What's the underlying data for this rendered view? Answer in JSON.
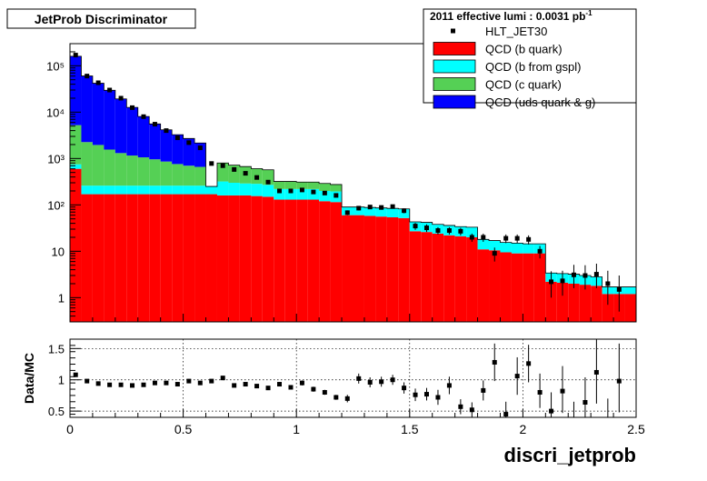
{
  "chart_data": [
    {
      "type": "stacked-histogram",
      "title": "JetProb Discriminator",
      "ylabel": "",
      "xlim": [
        0,
        2.5
      ],
      "ylim": [
        0.3,
        300000
      ],
      "y_scale": "log",
      "y_tick_labels": [
        "1",
        "10",
        "10²",
        "10³",
        "10⁴",
        "10⁵"
      ],
      "bin_edges": [
        0,
        0.05,
        0.1,
        0.15,
        0.2,
        0.25,
        0.3,
        0.35,
        0.4,
        0.45,
        0.5,
        0.55,
        0.6,
        0.65,
        0.7,
        0.75,
        0.8,
        0.85,
        0.9,
        0.95,
        1.0,
        1.05,
        1.1,
        1.15,
        1.2,
        1.25,
        1.3,
        1.35,
        1.4,
        1.45,
        1.5,
        1.55,
        1.6,
        1.65,
        1.7,
        1.75,
        1.8,
        1.85,
        1.9,
        1.95,
        2.0,
        2.05,
        2.1,
        2.15,
        2.2,
        2.25,
        2.3,
        2.35,
        2.4,
        2.45,
        2.5
      ],
      "grid": false,
      "legend_position": "top-right",
      "legend": {
        "header": "2011 effective lumi : 0.0031  pb",
        "header_superscript": "-1",
        "entries": [
          {
            "label": "HLT_JET30",
            "style": "marker",
            "color": "#000000"
          },
          {
            "label": "QCD (b quark)",
            "style": "fill",
            "color": "#ff0000"
          },
          {
            "label": "QCD (b from gspl)",
            "style": "fill",
            "color": "#00ffff"
          },
          {
            "label": "QCD (c quark)",
            "style": "fill",
            "color": "#55d055"
          },
          {
            "label": "QCD (uds quark & g)",
            "style": "fill",
            "color": "#0000ff"
          }
        ]
      },
      "series": [
        {
          "name": "QCD (b quark)",
          "color": "#ff0000",
          "values": [
            600,
            170,
            170,
            170,
            170,
            170,
            170,
            170,
            170,
            170,
            170,
            170,
            170,
            160,
            160,
            160,
            155,
            150,
            130,
            130,
            130,
            130,
            120,
            115,
            60,
            60,
            58,
            56,
            54,
            52,
            27,
            26,
            24,
            22,
            21,
            20,
            11,
            10.5,
            9.5,
            9,
            9,
            9,
            2.2,
            2.1,
            2.0,
            1.9,
            1.8,
            1.2,
            1.2,
            1.2
          ]
        },
        {
          "name": "QCD (b from gspl)",
          "color": "#00ffff",
          "values": [
            150,
            90,
            90,
            90,
            90,
            90,
            90,
            90,
            90,
            90,
            90,
            90,
            80,
            160,
            140,
            130,
            130,
            120,
            90,
            90,
            90,
            90,
            80,
            80,
            30,
            30,
            30,
            30,
            30,
            30,
            16,
            16,
            14,
            14,
            13,
            13,
            7,
            6.5,
            6,
            6,
            5.5,
            5.5,
            1.2,
            1.2,
            1.2,
            1.1,
            1.0,
            0.5,
            0.5,
            0.5
          ]
        },
        {
          "name": "QCD (c quark)",
          "color": "#55d055",
          "values": [
            4500,
            2000,
            1700,
            1300,
            1050,
            900,
            800,
            700,
            600,
            500,
            440,
            400,
            0,
            480,
            420,
            380,
            320,
            300,
            100,
            100,
            90,
            90,
            90,
            80,
            0,
            0,
            0,
            0,
            0,
            0,
            0,
            0,
            0,
            0,
            0,
            0,
            0,
            0,
            0,
            0,
            0,
            0,
            0,
            0,
            0,
            0,
            0,
            0,
            0,
            0
          ]
        },
        {
          "name": "QCD (uds quark & g)",
          "color": "#0000ff",
          "values": [
            155000,
            58000,
            40000,
            28000,
            18000,
            11500,
            7000,
            4600,
            3300,
            2500,
            2000,
            1500,
            0,
            0,
            0,
            0,
            0,
            0,
            0,
            0,
            0,
            0,
            0,
            0,
            0,
            0,
            0,
            0,
            0,
            0,
            0,
            0,
            0,
            0,
            0,
            0,
            0,
            0,
            0,
            0,
            0,
            0,
            0,
            0,
            0,
            0,
            0,
            0,
            0,
            0
          ]
        },
        {
          "name": "HLT_JET30",
          "style": "points",
          "x": [
            0.025,
            0.075,
            0.125,
            0.175,
            0.225,
            0.275,
            0.325,
            0.375,
            0.425,
            0.475,
            0.525,
            0.575,
            0.625,
            0.675,
            0.725,
            0.775,
            0.825,
            0.875,
            0.925,
            0.975,
            1.025,
            1.075,
            1.125,
            1.175,
            1.225,
            1.275,
            1.325,
            1.375,
            1.425,
            1.475,
            1.525,
            1.575,
            1.625,
            1.675,
            1.725,
            1.775,
            1.825,
            1.875,
            1.925,
            1.975,
            2.025,
            2.075,
            2.125,
            2.175,
            2.225,
            2.275,
            2.325,
            2.375,
            2.425
          ],
          "values": [
            170000,
            60000,
            43000,
            30000,
            20000,
            12500,
            8000,
            5500,
            4000,
            2800,
            2200,
            1700,
            780,
            700,
            580,
            480,
            390,
            310,
            200,
            200,
            210,
            190,
            180,
            160,
            68,
            85,
            90,
            88,
            92,
            75,
            35,
            32,
            28,
            28,
            27,
            20,
            20,
            9,
            19,
            19,
            18,
            10,
            2.2,
            2.3,
            3.1,
            3.0,
            3.2,
            2.0,
            1.5
          ],
          "errors_low": [
            0,
            0,
            0,
            0,
            0,
            0,
            0,
            0,
            0,
            0,
            0,
            0,
            0,
            0,
            0,
            0,
            0,
            0,
            0,
            0,
            0,
            0,
            0,
            0,
            8,
            9,
            9,
            9,
            9,
            9,
            6,
            6,
            5,
            5,
            5,
            4,
            4,
            3,
            4,
            4,
            4,
            3,
            1.2,
            1.2,
            1.5,
            1.5,
            1.6,
            1.3,
            1.0
          ],
          "errors_high": [
            0,
            0,
            0,
            0,
            0,
            0,
            0,
            0,
            0,
            0,
            0,
            0,
            0,
            0,
            0,
            0,
            0,
            0,
            0,
            0,
            0,
            0,
            0,
            0,
            8,
            9,
            9,
            9,
            9,
            9,
            6,
            6,
            5,
            5,
            5,
            4,
            4,
            3,
            4,
            4,
            4,
            3,
            1.5,
            1.5,
            2.0,
            2.0,
            2.2,
            1.8,
            1.5
          ]
        }
      ]
    },
    {
      "type": "ratio",
      "ylabel": "Data/MC",
      "xlabel": "discri_jetprob",
      "xlim": [
        0,
        2.5
      ],
      "ylim": [
        0.4,
        1.65
      ],
      "y_ticks": [
        0.5,
        1,
        1.5
      ],
      "y_tick_labels": [
        "0.5",
        "1",
        "1.5"
      ],
      "x_ticks": [
        0,
        0.5,
        1,
        1.5,
        2,
        2.5
      ],
      "x_tick_labels": [
        "0",
        "0.5",
        "1",
        "1.5",
        "2",
        "2.5"
      ],
      "grid": true,
      "x": [
        0.025,
        0.075,
        0.125,
        0.175,
        0.225,
        0.275,
        0.325,
        0.375,
        0.425,
        0.475,
        0.525,
        0.575,
        0.625,
        0.675,
        0.725,
        0.775,
        0.825,
        0.875,
        0.925,
        0.975,
        1.025,
        1.075,
        1.125,
        1.175,
        1.225,
        1.275,
        1.325,
        1.375,
        1.425,
        1.475,
        1.525,
        1.575,
        1.625,
        1.675,
        1.725,
        1.775,
        1.825,
        1.875,
        1.925,
        1.975,
        2.025,
        2.075,
        2.125,
        2.175,
        2.225,
        2.275,
        2.325,
        2.375,
        2.425
      ],
      "values": [
        1.08,
        0.98,
        0.94,
        0.92,
        0.92,
        0.91,
        0.92,
        0.95,
        0.95,
        0.93,
        0.98,
        0.95,
        0.98,
        1.03,
        0.91,
        0.93,
        0.9,
        0.87,
        0.93,
        0.88,
        0.95,
        0.85,
        0.8,
        0.72,
        0.7,
        1.02,
        0.96,
        0.97,
        1.0,
        0.87,
        0.76,
        0.77,
        0.72,
        0.91,
        0.57,
        0.52,
        0.83,
        1.28,
        0.45,
        1.06,
        1.26,
        0.8,
        0.5,
        0.82,
        0.3,
        0.64,
        1.12,
        0.3,
        0.98
      ],
      "errors_low": [
        0,
        0,
        0,
        0,
        0,
        0,
        0,
        0,
        0,
        0,
        0,
        0,
        0,
        0,
        0,
        0,
        0.03,
        0.03,
        0.03,
        0.03,
        0.04,
        0.04,
        0.04,
        0.04,
        0.06,
        0.08,
        0.08,
        0.08,
        0.08,
        0.09,
        0.1,
        0.1,
        0.12,
        0.14,
        0.12,
        0.12,
        0.16,
        0.3,
        0.2,
        0.3,
        0.3,
        0.25,
        0.25,
        0.35,
        0.3,
        0.35,
        0.5,
        0.3,
        0.5
      ],
      "errors_high": [
        0,
        0,
        0,
        0,
        0,
        0,
        0,
        0,
        0,
        0,
        0,
        0,
        0,
        0,
        0,
        0,
        0.03,
        0.03,
        0.03,
        0.03,
        0.04,
        0.04,
        0.04,
        0.04,
        0.06,
        0.08,
        0.08,
        0.08,
        0.08,
        0.09,
        0.1,
        0.1,
        0.12,
        0.14,
        0.12,
        0.12,
        0.16,
        0.3,
        0.2,
        0.3,
        0.3,
        0.3,
        0.3,
        0.4,
        0.35,
        0.4,
        0.55,
        0.4,
        0.6
      ]
    }
  ]
}
